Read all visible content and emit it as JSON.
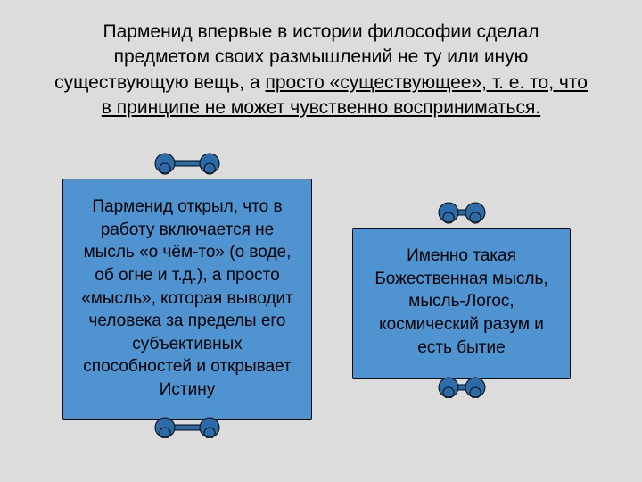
{
  "colors": {
    "page_bg": "#dcdcdc",
    "text": "#000000",
    "scroll_fill": "#4f93d1",
    "scroll_border": "#0a0a0a",
    "rod_fill": "#2c6aa8",
    "rod_stroke": "#0a0a0a"
  },
  "typography": {
    "heading_fontsize": 21,
    "scroll_fontsize": 19
  },
  "heading": {
    "plain": "Парменид впервые в истории философии сделал предметом своих размышлений не ту или иную существующую вещь, а ",
    "underlined": "просто «существующее», т. е. то, что в принципе не может чувственно восприниматься."
  },
  "scrolls": {
    "left": {
      "text": "Парменид открыл, что в работу включается не мысль «о чём-то» (о воде, об огне и т.д.), а просто «мысль», которая выводит человека за пределы его субъективных способностей и открывает Истину",
      "rod_width": 80
    },
    "right": {
      "text": "Именно такая Божественная мысль, мысль-Логос, космический разум и есть бытие",
      "rod_width": 60
    }
  }
}
